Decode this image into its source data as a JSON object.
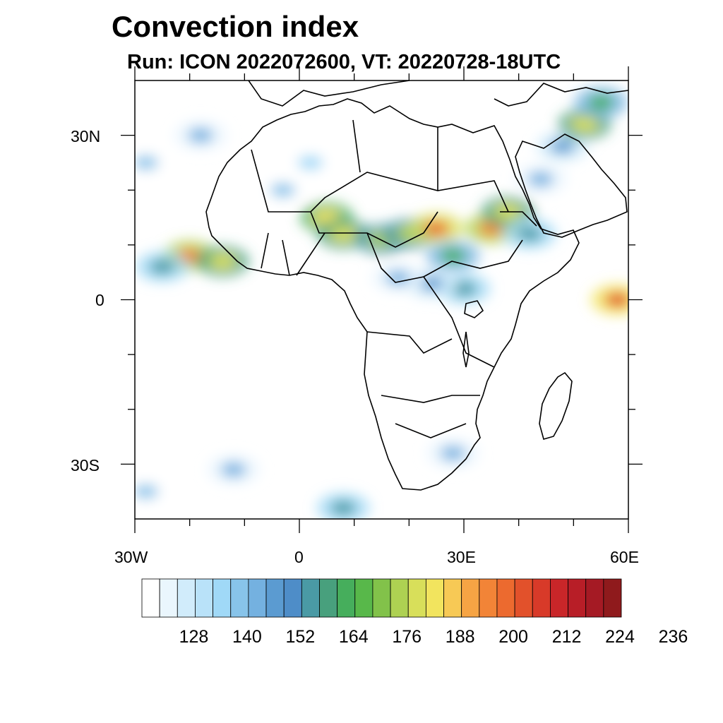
{
  "title": "Convection index",
  "subtitle": "Run: ICON 2022072600,  VT: 20220728-18UTC",
  "axes": {
    "lat_labels": [
      "30N",
      "0",
      "30S"
    ],
    "lon_labels": [
      "30W",
      "0",
      "30E",
      "60E"
    ],
    "lon_range": [
      -30,
      60
    ],
    "lat_range": [
      -40,
      40
    ]
  },
  "colorbar": {
    "labels": [
      "128",
      "140",
      "152",
      "164",
      "176",
      "188",
      "200",
      "212",
      "224",
      "236"
    ],
    "colors": [
      "#ffffff",
      "#eaf6fd",
      "#d1ecfb",
      "#b9e2f9",
      "#a0d9f7",
      "#88c4ea",
      "#74b1e0",
      "#5b9bd1",
      "#4e8dc8",
      "#4a9aa5",
      "#48a07d",
      "#46ae5c",
      "#58b84a",
      "#82c24a",
      "#aed152",
      "#d8df5a",
      "#f2e45e",
      "#f7c955",
      "#f6a444",
      "#f28437",
      "#ec6a2f",
      "#e2512b",
      "#d83a29",
      "#c92629",
      "#b81e27",
      "#a51a24",
      "#8f1a1c"
    ]
  },
  "field": {
    "cells": [
      {
        "lon": -20,
        "lat": 8,
        "v": 190
      },
      {
        "lon": -14,
        "lat": 7,
        "v": 176
      },
      {
        "lon": -25,
        "lat": 6,
        "v": 150
      },
      {
        "lon": 5,
        "lat": 15,
        "v": 180
      },
      {
        "lon": 8,
        "lat": 12,
        "v": 176
      },
      {
        "lon": 15,
        "lat": 11,
        "v": 172
      },
      {
        "lon": 20,
        "lat": 12,
        "v": 170
      },
      {
        "lon": 25,
        "lat": 13,
        "v": 196
      },
      {
        "lon": 28,
        "lat": 8,
        "v": 160
      },
      {
        "lon": 35,
        "lat": 13,
        "v": 190
      },
      {
        "lon": 38,
        "lat": 16,
        "v": 176
      },
      {
        "lon": 42,
        "lat": 12,
        "v": 150
      },
      {
        "lon": 30,
        "lat": 2,
        "v": 150
      },
      {
        "lon": 24,
        "lat": 3,
        "v": 145
      },
      {
        "lon": 18,
        "lat": 4,
        "v": 140
      },
      {
        "lon": 44,
        "lat": 22,
        "v": 140
      },
      {
        "lon": 48,
        "lat": 28,
        "v": 145
      },
      {
        "lon": 52,
        "lat": 32,
        "v": 176
      },
      {
        "lon": 55,
        "lat": 36,
        "v": 160
      },
      {
        "lon": 58,
        "lat": 0,
        "v": 200
      },
      {
        "lon": -18,
        "lat": 30,
        "v": 140
      },
      {
        "lon": -3,
        "lat": 20,
        "v": 135
      },
      {
        "lon": 2,
        "lat": 25,
        "v": 132
      },
      {
        "lon": -28,
        "lat": 25,
        "v": 135
      },
      {
        "lon": 28,
        "lat": -28,
        "v": 140
      },
      {
        "lon": 8,
        "lat": -38,
        "v": 150
      },
      {
        "lon": -12,
        "lat": -31,
        "v": 140
      },
      {
        "lon": -28,
        "lat": -35,
        "v": 135
      }
    ]
  }
}
